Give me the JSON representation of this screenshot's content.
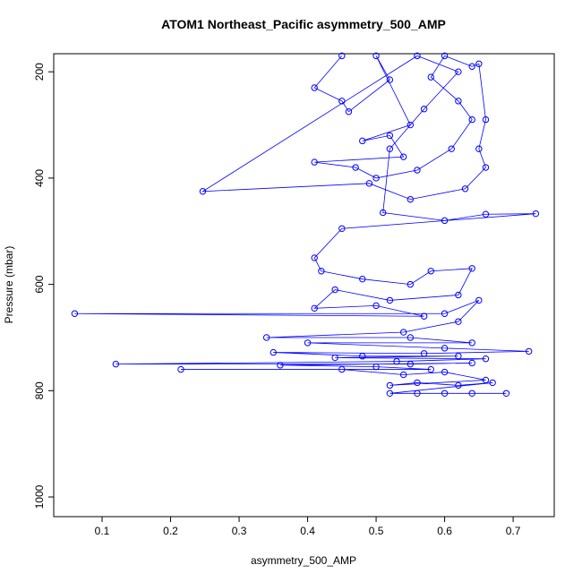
{
  "chart_data": {
    "type": "line",
    "title": "ATOM1 Northeast_Pacific asymmetry_500_AMP",
    "x_label": "asymmetry_500_AMP",
    "y_label": "Pressure (mbar)",
    "color": "#0000ff",
    "markers": true,
    "y_inverted": true,
    "xlim": [
      0.0294,
      0.76
    ],
    "ylim": [
      166,
      1037
    ],
    "xticks": [
      0.1,
      0.2,
      0.3,
      0.4,
      0.5,
      0.6,
      0.7
    ],
    "yticks": [
      200,
      400,
      600,
      800,
      1000
    ],
    "x": [
      0.45,
      0.41,
      0.45,
      0.46,
      0.52,
      0.5,
      0.55,
      0.48,
      0.52,
      0.54,
      0.41,
      0.47,
      0.5,
      0.56,
      0.61,
      0.64,
      0.62,
      0.58,
      0.6,
      0.64,
      0.65,
      0.66,
      0.65,
      0.66,
      0.63,
      0.55,
      0.49,
      0.247,
      0.56,
      0.62,
      0.57,
      0.52,
      0.51,
      0.6,
      0.66,
      0.733,
      0.45,
      0.41,
      0.42,
      0.48,
      0.55,
      0.58,
      0.64,
      0.62,
      0.52,
      0.44,
      0.41,
      0.5,
      0.57,
      0.06,
      0.6,
      0.65,
      0.62,
      0.54,
      0.34,
      0.55,
      0.64,
      0.4,
      0.6,
      0.723,
      0.57,
      0.35,
      0.48,
      0.62,
      0.44,
      0.66,
      0.53,
      0.12,
      0.55,
      0.64,
      0.36,
      0.5,
      0.58,
      0.215,
      0.45,
      0.54,
      0.6,
      0.66,
      0.52,
      0.56,
      0.62,
      0.67,
      0.52,
      0.56,
      0.6,
      0.64,
      0.69
    ],
    "values": [
      170,
      230,
      255,
      275,
      215,
      170,
      300,
      330,
      320,
      360,
      370,
      380,
      400,
      385,
      345,
      290,
      255,
      210,
      170,
      190,
      185,
      290,
      345,
      380,
      420,
      440,
      410,
      425,
      170,
      200,
      270,
      345,
      465,
      480,
      468,
      467,
      495,
      550,
      575,
      590,
      600,
      575,
      570,
      620,
      630,
      610,
      645,
      640,
      660,
      655,
      655,
      630,
      670,
      690,
      700,
      700,
      710,
      710,
      720,
      726,
      730,
      728,
      735,
      735,
      738,
      740,
      745,
      750,
      750,
      748,
      752,
      755,
      760,
      760,
      760,
      770,
      765,
      780,
      790,
      785,
      790,
      785,
      805,
      805,
      805,
      805,
      805
    ]
  }
}
